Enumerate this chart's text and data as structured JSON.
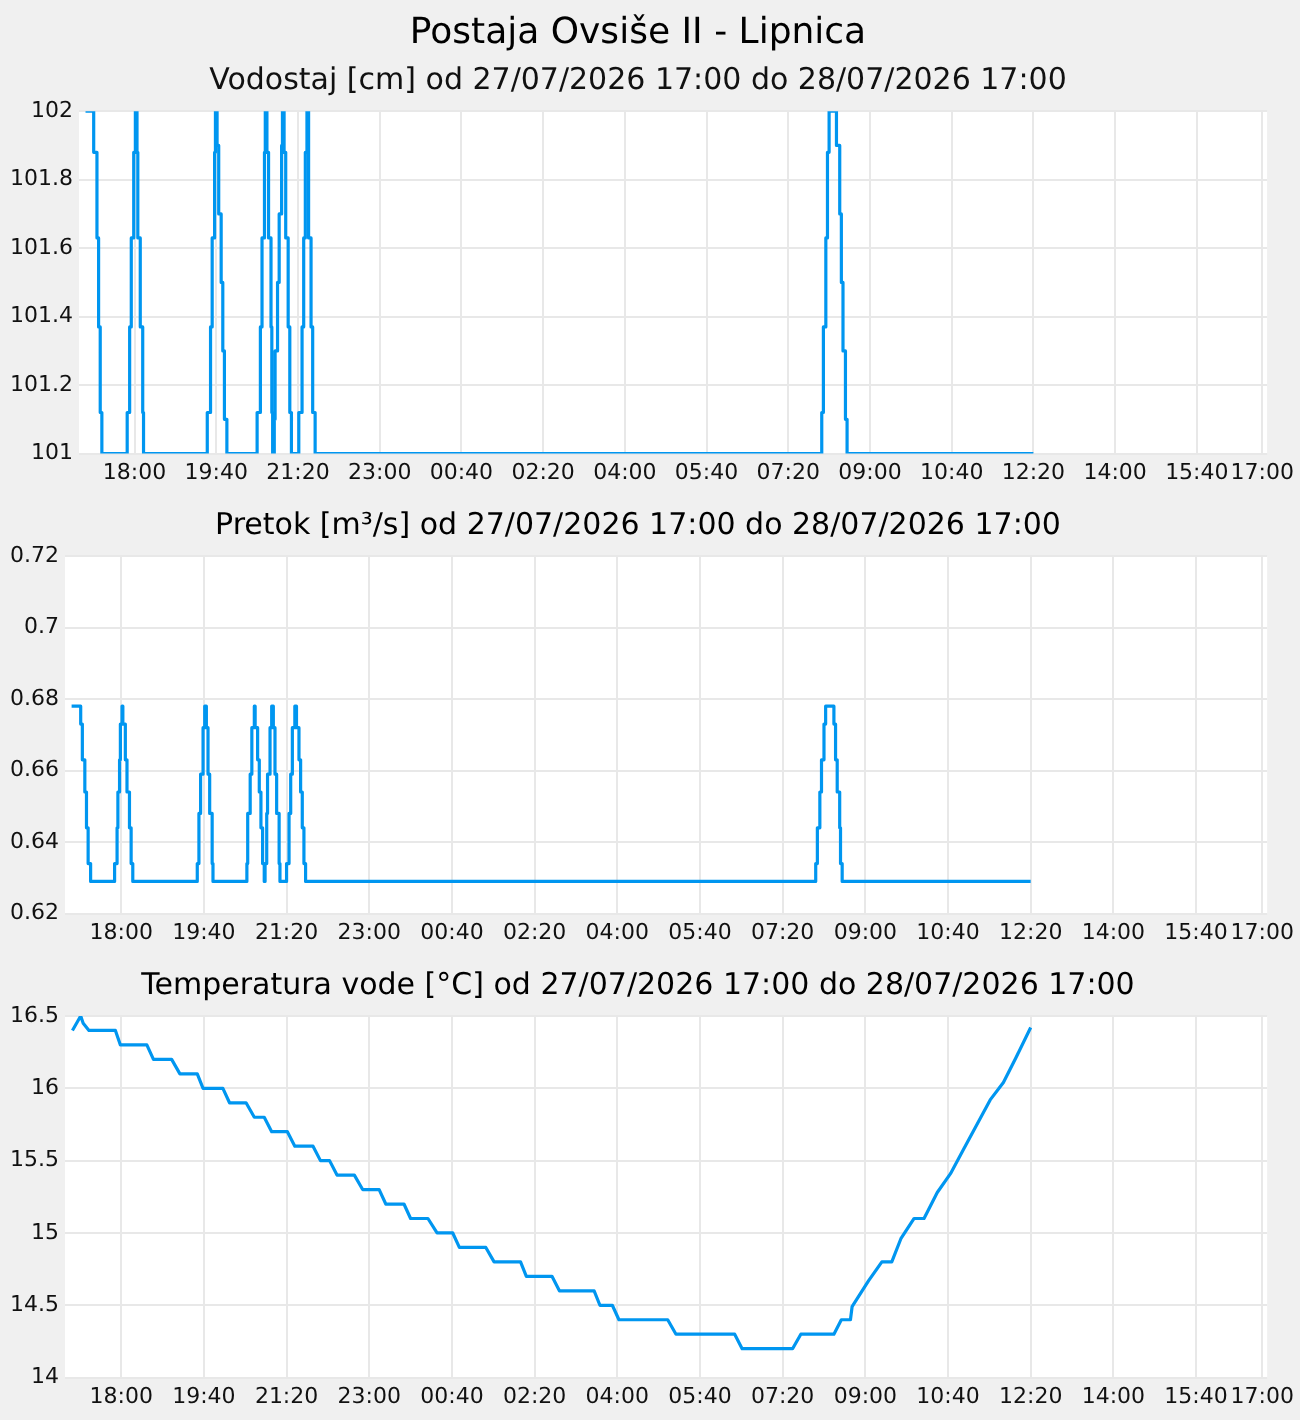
{
  "chart_data": [
    {
      "type": "step",
      "title": "Postaja Ovsiše II - Lipnica",
      "subtitle": "Vodostaj [cm] od 27/07/2026 17:00 do 28/07/2026 17:00",
      "grid": true,
      "legend": false,
      "marker": "none",
      "xlim": [
        "2026-07-27T16:52",
        "2026-07-28T17:06"
      ],
      "xticks": [
        {
          "value": "2026-07-27T18:00",
          "label": "18:00"
        },
        {
          "value": "2026-07-27T19:40",
          "label": "19:40"
        },
        {
          "value": "2026-07-27T21:20",
          "label": "21:20"
        },
        {
          "value": "2026-07-27T23:00",
          "label": "23:00"
        },
        {
          "value": "2026-07-28T00:40",
          "label": "00:40"
        },
        {
          "value": "2026-07-28T02:20",
          "label": "02:20"
        },
        {
          "value": "2026-07-28T04:00",
          "label": "04:00"
        },
        {
          "value": "2026-07-28T05:40",
          "label": "05:40"
        },
        {
          "value": "2026-07-28T07:20",
          "label": "07:20"
        },
        {
          "value": "2026-07-28T09:00",
          "label": "09:00"
        },
        {
          "value": "2026-07-28T10:40",
          "label": "10:40"
        },
        {
          "value": "2026-07-28T12:20",
          "label": "12:20"
        },
        {
          "value": "2026-07-28T14:00",
          "label": "14:00"
        },
        {
          "value": "2026-07-28T15:40",
          "label": "15:40"
        },
        {
          "value": "2026-07-28T17:00",
          "label": "17:00"
        }
      ],
      "ylim": [
        101,
        102
      ],
      "yticks": [
        101,
        101.2,
        101.4,
        101.6,
        101.8,
        102
      ],
      "series": [
        {
          "color": "#0096f0",
          "x": [
            "2026-07-27T17:00",
            "2026-07-27T17:10",
            "2026-07-27T17:14",
            "2026-07-27T17:16",
            "2026-07-27T17:18",
            "2026-07-27T17:20",
            "2026-07-27T17:51",
            "2026-07-27T17:54",
            "2026-07-27T17:56",
            "2026-07-27T17:59",
            "2026-07-27T18:01",
            "2026-07-27T18:03",
            "2026-07-27T18:04",
            "2026-07-27T18:07",
            "2026-07-27T18:10",
            "2026-07-27T18:11",
            "2026-07-27T19:29",
            "2026-07-27T19:33",
            "2026-07-27T19:35",
            "2026-07-27T19:38",
            "2026-07-27T19:39",
            "2026-07-27T19:41",
            "2026-07-27T19:43",
            "2026-07-27T19:46",
            "2026-07-27T19:48",
            "2026-07-27T19:50",
            "2026-07-27T19:53",
            "2026-07-27T20:30",
            "2026-07-27T20:34",
            "2026-07-27T20:36",
            "2026-07-27T20:39",
            "2026-07-27T20:40",
            "2026-07-27T20:42",
            "2026-07-27T20:44",
            "2026-07-27T20:47",
            "2026-07-27T20:48",
            "2026-07-27T20:49",
            "2026-07-27T20:51",
            "2026-07-27T20:52",
            "2026-07-27T20:55",
            "2026-07-27T20:57",
            "2026-07-27T21:00",
            "2026-07-27T21:01",
            "2026-07-27T21:03",
            "2026-07-27T21:05",
            "2026-07-27T21:08",
            "2026-07-27T21:10",
            "2026-07-27T21:12",
            "2026-07-27T21:21",
            "2026-07-27T21:25",
            "2026-07-27T21:27",
            "2026-07-27T21:29",
            "2026-07-27T21:31",
            "2026-07-27T21:33",
            "2026-07-27T21:36",
            "2026-07-27T21:38",
            "2026-07-27T21:41",
            "2026-07-28T08:01",
            "2026-07-28T08:03",
            "2026-07-28T08:06",
            "2026-07-28T08:08",
            "2026-07-28T08:10",
            "2026-07-28T08:19",
            "2026-07-28T08:23",
            "2026-07-28T08:25",
            "2026-07-28T08:27",
            "2026-07-28T08:30",
            "2026-07-28T08:32",
            "2026-07-28T12:20"
          ],
          "values": [
            102,
            101.88,
            101.63,
            101.37,
            101.12,
            101,
            101.12,
            101.37,
            101.63,
            101.88,
            102,
            101.88,
            101.63,
            101.37,
            101.12,
            101,
            101.12,
            101.37,
            101.63,
            101.88,
            102,
            101.9,
            101.7,
            101.5,
            101.3,
            101.1,
            101,
            101.12,
            101.37,
            101.63,
            101.88,
            102,
            101.88,
            101.63,
            101.37,
            101.12,
            101,
            101.1,
            101.3,
            101.5,
            101.7,
            101.9,
            102,
            101.88,
            101.63,
            101.37,
            101.12,
            101,
            101.12,
            101.37,
            101.63,
            101.88,
            102,
            101.63,
            101.37,
            101.12,
            101,
            101.12,
            101.37,
            101.63,
            101.88,
            102,
            101.9,
            101.7,
            101.5,
            101.3,
            101.1,
            101,
            101
          ]
        }
      ]
    },
    {
      "type": "step",
      "title": "Pretok [m³/s] od 27/07/2026 17:00 do 28/07/2026 17:00",
      "grid": true,
      "legend": false,
      "marker": "none",
      "xlim": [
        "2026-07-27T16:52",
        "2026-07-28T17:06"
      ],
      "xticks": [
        {
          "value": "2026-07-27T18:00",
          "label": "18:00"
        },
        {
          "value": "2026-07-27T19:40",
          "label": "19:40"
        },
        {
          "value": "2026-07-27T21:20",
          "label": "21:20"
        },
        {
          "value": "2026-07-27T23:00",
          "label": "23:00"
        },
        {
          "value": "2026-07-28T00:40",
          "label": "00:40"
        },
        {
          "value": "2026-07-28T02:20",
          "label": "02:20"
        },
        {
          "value": "2026-07-28T04:00",
          "label": "04:00"
        },
        {
          "value": "2026-07-28T05:40",
          "label": "05:40"
        },
        {
          "value": "2026-07-28T07:20",
          "label": "07:20"
        },
        {
          "value": "2026-07-28T09:00",
          "label": "09:00"
        },
        {
          "value": "2026-07-28T10:40",
          "label": "10:40"
        },
        {
          "value": "2026-07-28T12:20",
          "label": "12:20"
        },
        {
          "value": "2026-07-28T14:00",
          "label": "14:00"
        },
        {
          "value": "2026-07-28T15:40",
          "label": "15:40"
        },
        {
          "value": "2026-07-28T17:00",
          "label": "17:00"
        }
      ],
      "ylim": [
        0.62,
        0.72
      ],
      "yticks": [
        0.62,
        0.64,
        0.66,
        0.68,
        0.7,
        0.72
      ],
      "series": [
        {
          "color": "#0096f0",
          "x": [
            "2026-07-27T17:00",
            "2026-07-27T17:11",
            "2026-07-27T17:13",
            "2026-07-27T17:16",
            "2026-07-27T17:18",
            "2026-07-27T17:20",
            "2026-07-27T17:23",
            "2026-07-27T17:52",
            "2026-07-27T17:55",
            "2026-07-27T17:56",
            "2026-07-27T17:58",
            "2026-07-27T17:59",
            "2026-07-27T18:01",
            "2026-07-27T18:02",
            "2026-07-27T18:05",
            "2026-07-27T18:07",
            "2026-07-27T18:10",
            "2026-07-27T18:12",
            "2026-07-27T18:14",
            "2026-07-27T19:32",
            "2026-07-27T19:34",
            "2026-07-27T19:36",
            "2026-07-27T19:39",
            "2026-07-27T19:41",
            "2026-07-27T19:43",
            "2026-07-27T19:45",
            "2026-07-27T19:47",
            "2026-07-27T19:50",
            "2026-07-27T19:51",
            "2026-07-27T20:32",
            "2026-07-27T20:33",
            "2026-07-27T20:36",
            "2026-07-27T20:38",
            "2026-07-27T20:41",
            "2026-07-27T20:42",
            "2026-07-27T20:45",
            "2026-07-27T20:47",
            "2026-07-27T20:49",
            "2026-07-27T20:51",
            "2026-07-27T20:53",
            "2026-07-27T20:54",
            "2026-07-27T20:56",
            "2026-07-27T20:57",
            "2026-07-27T21:00",
            "2026-07-27T21:02",
            "2026-07-27T21:04",
            "2026-07-27T21:06",
            "2026-07-27T21:08",
            "2026-07-27T21:11",
            "2026-07-27T21:12",
            "2026-07-27T21:20",
            "2026-07-27T21:23",
            "2026-07-27T21:25",
            "2026-07-27T21:27",
            "2026-07-27T21:30",
            "2026-07-27T21:32",
            "2026-07-27T21:35",
            "2026-07-27T21:37",
            "2026-07-27T21:39",
            "2026-07-27T21:41",
            "2026-07-27T21:43",
            "2026-07-28T08:00",
            "2026-07-28T08:02",
            "2026-07-28T08:05",
            "2026-07-28T08:07",
            "2026-07-28T08:10",
            "2026-07-28T08:12",
            "2026-07-28T08:22",
            "2026-07-28T08:24",
            "2026-07-28T08:26",
            "2026-07-28T08:29",
            "2026-07-28T08:30",
            "2026-07-28T08:32",
            "2026-07-28T12:20"
          ],
          "values": [
            0.678,
            0.673,
            0.663,
            0.654,
            0.644,
            0.634,
            0.629,
            0.634,
            0.644,
            0.654,
            0.663,
            0.673,
            0.678,
            0.673,
            0.663,
            0.654,
            0.644,
            0.634,
            0.629,
            0.634,
            0.648,
            0.659,
            0.672,
            0.678,
            0.672,
            0.659,
            0.648,
            0.634,
            0.629,
            0.634,
            0.648,
            0.659,
            0.672,
            0.678,
            0.672,
            0.663,
            0.654,
            0.644,
            0.634,
            0.629,
            0.634,
            0.648,
            0.659,
            0.672,
            0.678,
            0.672,
            0.659,
            0.648,
            0.634,
            0.629,
            0.634,
            0.648,
            0.659,
            0.672,
            0.678,
            0.672,
            0.663,
            0.654,
            0.644,
            0.634,
            0.629,
            0.634,
            0.644,
            0.654,
            0.663,
            0.673,
            0.678,
            0.673,
            0.663,
            0.654,
            0.644,
            0.634,
            0.629,
            0.629
          ]
        }
      ]
    },
    {
      "type": "line",
      "title": "Temperatura vode [°C] od 27/07/2026 17:00 do 28/07/2026 17:00",
      "grid": true,
      "legend": false,
      "marker": "none",
      "xlim": [
        "2026-07-27T16:52",
        "2026-07-28T17:06"
      ],
      "xticks": [
        {
          "value": "2026-07-27T18:00",
          "label": "18:00"
        },
        {
          "value": "2026-07-27T19:40",
          "label": "19:40"
        },
        {
          "value": "2026-07-27T21:20",
          "label": "21:20"
        },
        {
          "value": "2026-07-27T23:00",
          "label": "23:00"
        },
        {
          "value": "2026-07-28T00:40",
          "label": "00:40"
        },
        {
          "value": "2026-07-28T02:20",
          "label": "02:20"
        },
        {
          "value": "2026-07-28T04:00",
          "label": "04:00"
        },
        {
          "value": "2026-07-28T05:40",
          "label": "05:40"
        },
        {
          "value": "2026-07-28T07:20",
          "label": "07:20"
        },
        {
          "value": "2026-07-28T09:00",
          "label": "09:00"
        },
        {
          "value": "2026-07-28T10:40",
          "label": "10:40"
        },
        {
          "value": "2026-07-28T12:20",
          "label": "12:20"
        },
        {
          "value": "2026-07-28T14:00",
          "label": "14:00"
        },
        {
          "value": "2026-07-28T15:40",
          "label": "15:40"
        },
        {
          "value": "2026-07-28T17:00",
          "label": "17:00"
        }
      ],
      "ylim": [
        14,
        16.5
      ],
      "yticks": [
        14,
        14.5,
        15,
        15.5,
        16,
        16.5
      ],
      "series": [
        {
          "color": "#0096f0",
          "x": [
            "2026-07-27T17:01",
            "2026-07-27T17:11",
            "2026-07-27T17:14",
            "2026-07-27T17:21",
            "2026-07-27T17:53",
            "2026-07-27T17:59",
            "2026-07-27T18:31",
            "2026-07-27T18:39",
            "2026-07-27T19:01",
            "2026-07-27T19:11",
            "2026-07-27T19:32",
            "2026-07-27T19:39",
            "2026-07-27T20:03",
            "2026-07-27T20:11",
            "2026-07-27T20:31",
            "2026-07-27T20:41",
            "2026-07-27T20:53",
            "2026-07-27T21:02",
            "2026-07-27T21:21",
            "2026-07-27T21:30",
            "2026-07-27T21:52",
            "2026-07-27T22:01",
            "2026-07-27T22:12",
            "2026-07-27T22:21",
            "2026-07-27T22:42",
            "2026-07-27T22:52",
            "2026-07-27T23:12",
            "2026-07-27T23:20",
            "2026-07-27T23:42",
            "2026-07-27T23:50",
            "2026-07-28T00:11",
            "2026-07-28T00:22",
            "2026-07-28T00:41",
            "2026-07-28T00:49",
            "2026-07-28T01:21",
            "2026-07-28T01:31",
            "2026-07-28T02:03",
            "2026-07-28T02:10",
            "2026-07-28T02:41",
            "2026-07-28T02:50",
            "2026-07-28T03:32",
            "2026-07-28T03:39",
            "2026-07-28T03:54",
            "2026-07-28T04:02",
            "2026-07-28T05:01",
            "2026-07-28T05:11",
            "2026-07-28T06:22",
            "2026-07-28T06:31",
            "2026-07-28T07:32",
            "2026-07-28T07:42",
            "2026-07-28T08:22",
            "2026-07-28T08:31",
            "2026-07-28T08:42",
            "2026-07-28T08:44",
            "2026-07-28T09:04",
            "2026-07-28T09:20",
            "2026-07-28T09:32",
            "2026-07-28T09:43",
            "2026-07-28T09:59",
            "2026-07-28T10:11",
            "2026-07-28T10:27",
            "2026-07-28T10:43",
            "2026-07-28T10:59",
            "2026-07-28T11:15",
            "2026-07-28T11:31",
            "2026-07-28T11:47",
            "2026-07-28T12:02",
            "2026-07-28T12:20"
          ],
          "values": [
            16.4,
            16.5,
            16.45,
            16.4,
            16.4,
            16.3,
            16.3,
            16.2,
            16.2,
            16.1,
            16.1,
            16.0,
            16.0,
            15.9,
            15.9,
            15.8,
            15.8,
            15.7,
            15.7,
            15.6,
            15.6,
            15.5,
            15.5,
            15.4,
            15.4,
            15.3,
            15.3,
            15.2,
            15.2,
            15.1,
            15.1,
            15.0,
            15.0,
            14.9,
            14.9,
            14.8,
            14.8,
            14.7,
            14.7,
            14.6,
            14.6,
            14.5,
            14.5,
            14.4,
            14.4,
            14.3,
            14.3,
            14.2,
            14.2,
            14.3,
            14.3,
            14.4,
            14.4,
            14.49,
            14.67,
            14.8,
            14.8,
            14.96,
            15.1,
            15.1,
            15.28,
            15.41,
            15.58,
            15.75,
            15.92,
            16.04,
            16.21,
            16.42
          ]
        }
      ]
    }
  ]
}
